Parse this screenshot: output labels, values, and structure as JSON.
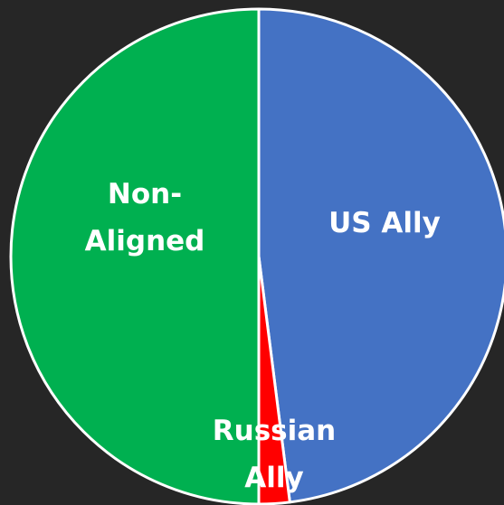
{
  "chart_data": {
    "type": "pie",
    "categories": [
      "US Ally",
      "Russian Ally",
      "Non-Aligned"
    ],
    "values": [
      48,
      2,
      50
    ],
    "colors": [
      "#4472c4",
      "#ff0000",
      "#00b050"
    ]
  }
}
